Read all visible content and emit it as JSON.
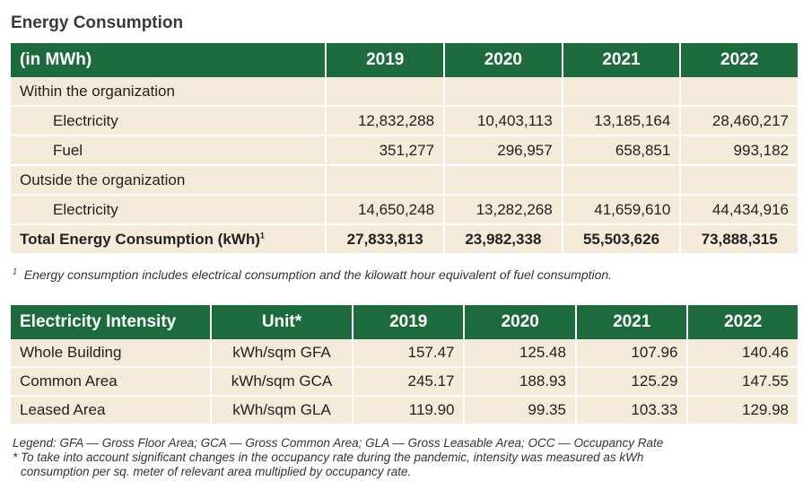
{
  "title": "Energy Consumption",
  "energy_table": {
    "header": {
      "label": "(in MWh)",
      "years": [
        "2019",
        "2020",
        "2021",
        "2022"
      ]
    },
    "section_within": "Within the organization",
    "within_rows": [
      {
        "label": "Electricity",
        "values": [
          "12,832,288",
          "10,403,113",
          "13,185,164",
          "28,460,217"
        ]
      },
      {
        "label": "Fuel",
        "values": [
          "351,277",
          "296,957",
          "658,851",
          "993,182"
        ]
      }
    ],
    "section_outside": "Outside the organization",
    "outside_rows": [
      {
        "label": "Electricity",
        "values": [
          "14,650,248",
          "13,282,268",
          "41,659,610",
          "44,434,916"
        ]
      }
    ],
    "total": {
      "label": "Total Energy Consumption (kWh)",
      "footnote_mark": "1",
      "values": [
        "27,833,813",
        "23,982,338",
        "55,503,626",
        "73,888,315"
      ]
    }
  },
  "footnote": {
    "mark": "1",
    "text": "Energy consumption includes electrical consumption and the kilowatt hour equivalent of fuel consumption."
  },
  "intensity_table": {
    "header": {
      "label": "Electricity Intensity",
      "unit": "Unit*",
      "years": [
        "2019",
        "2020",
        "2021",
        "2022"
      ]
    },
    "rows": [
      {
        "label": "Whole Building",
        "unit": "kWh/sqm GFA",
        "values": [
          "157.47",
          "125.48",
          "107.96",
          "140.46"
        ]
      },
      {
        "label": "Common Area",
        "unit": "kWh/sqm GCA",
        "values": [
          "245.17",
          "188.93",
          "125.29",
          "147.55"
        ]
      },
      {
        "label": "Leased Area",
        "unit": "kWh/sqm GLA",
        "values": [
          "119.90",
          "99.35",
          "103.33",
          "129.98"
        ]
      }
    ]
  },
  "legend": {
    "line1": "Legend: GFA — Gross Floor Area; GCA — Gross Common Area; GLA — Gross Leasable Area; OCC — Occupancy Rate",
    "line2": "* To take into account significant changes in the occupancy rate during the pandemic, intensity was measured as kWh",
    "line3": "consumption per sq. meter of relevant area multiplied by occupancy rate."
  },
  "colors": {
    "header_green": "#1d6b3c",
    "row_beige": "#f3ead9"
  }
}
